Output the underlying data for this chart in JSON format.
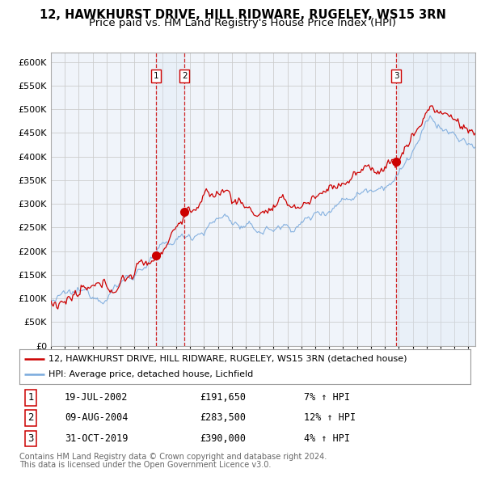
{
  "title": "12, HAWKHURST DRIVE, HILL RIDWARE, RUGELEY, WS15 3RN",
  "subtitle": "Price paid vs. HM Land Registry's House Price Index (HPI)",
  "ylim": [
    0,
    620000
  ],
  "yticks": [
    0,
    50000,
    100000,
    150000,
    200000,
    250000,
    300000,
    350000,
    400000,
    450000,
    500000,
    550000,
    600000
  ],
  "xlim_start": 1995.0,
  "xlim_end": 2025.5,
  "background_color": "#ffffff",
  "plot_bg_color": "#f0f4fa",
  "grid_color": "#cccccc",
  "red_line_color": "#cc0000",
  "blue_line_color": "#7aaadd",
  "shade_color": "#dce8f5",
  "sale_marker_color": "#cc0000",
  "dashed_line_color": "#cc0000",
  "legend_label_red": "12, HAWKHURST DRIVE, HILL RIDWARE, RUGELEY, WS15 3RN (detached house)",
  "legend_label_blue": "HPI: Average price, detached house, Lichfield",
  "sales": [
    {
      "num": 1,
      "date_year": 2002.54,
      "price": 191650,
      "label": "19-JUL-2002",
      "price_str": "£191,650",
      "hpi_str": "7% ↑ HPI"
    },
    {
      "num": 2,
      "date_year": 2004.6,
      "price": 283500,
      "label": "09-AUG-2004",
      "price_str": "£283,500",
      "hpi_str": "12% ↑ HPI"
    },
    {
      "num": 3,
      "date_year": 2019.83,
      "price": 390000,
      "label": "31-OCT-2019",
      "price_str": "£390,000",
      "hpi_str": "4% ↑ HPI"
    }
  ],
  "footer1": "Contains HM Land Registry data © Crown copyright and database right 2024.",
  "footer2": "This data is licensed under the Open Government Licence v3.0.",
  "title_fontsize": 10.5,
  "subtitle_fontsize": 9.5,
  "tick_fontsize": 8,
  "legend_fontsize": 8,
  "table_fontsize": 8.5,
  "footer_fontsize": 7
}
